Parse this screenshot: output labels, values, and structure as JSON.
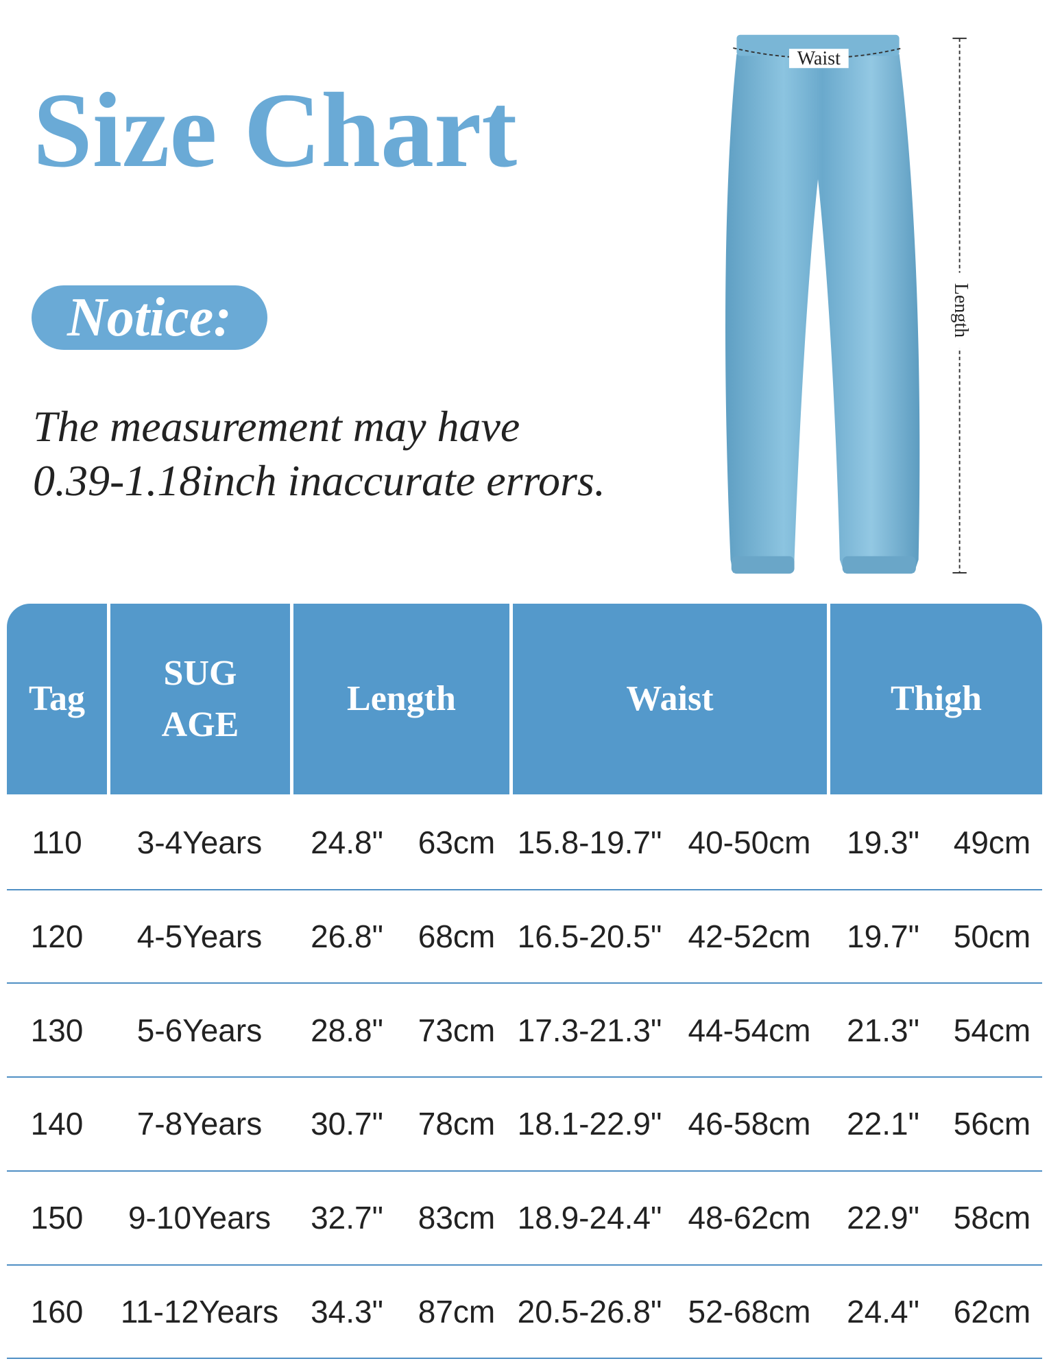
{
  "header": {
    "title": "Size Chart",
    "notice_label": "Notice:",
    "notice_lines": [
      "The measurement may have",
      "0.39-1.18inch inaccurate errors."
    ]
  },
  "diagram": {
    "waist_label": "Waist",
    "length_label": "Length"
  },
  "table": {
    "columns": [
      "Tag",
      "SUG\nAGE",
      "Length",
      "Waist",
      "Thigh"
    ],
    "rows": [
      [
        "110",
        "3-4Years",
        "24.8\"",
        "63cm",
        "15.8-19.7\"",
        "40-50cm",
        "19.3\"",
        "49cm"
      ],
      [
        "120",
        "4-5Years",
        "26.8\"",
        "68cm",
        "16.5-20.5\"",
        "42-52cm",
        "19.7\"",
        "50cm"
      ],
      [
        "130",
        "5-6Years",
        "28.8\"",
        "73cm",
        "17.3-21.3\"",
        "44-54cm",
        "21.3\"",
        "54cm"
      ],
      [
        "140",
        "7-8Years",
        "30.7\"",
        "78cm",
        "18.1-22.9\"",
        "46-58cm",
        "22.1\"",
        "56cm"
      ],
      [
        "150",
        "9-10Years",
        "32.7\"",
        "83cm",
        "18.9-24.4\"",
        "48-62cm",
        "22.9\"",
        "58cm"
      ],
      [
        "160",
        "11-12Years",
        "34.3\"",
        "87cm",
        "20.5-26.8\"",
        "52-68cm",
        "24.4\"",
        "62cm"
      ]
    ]
  }
}
